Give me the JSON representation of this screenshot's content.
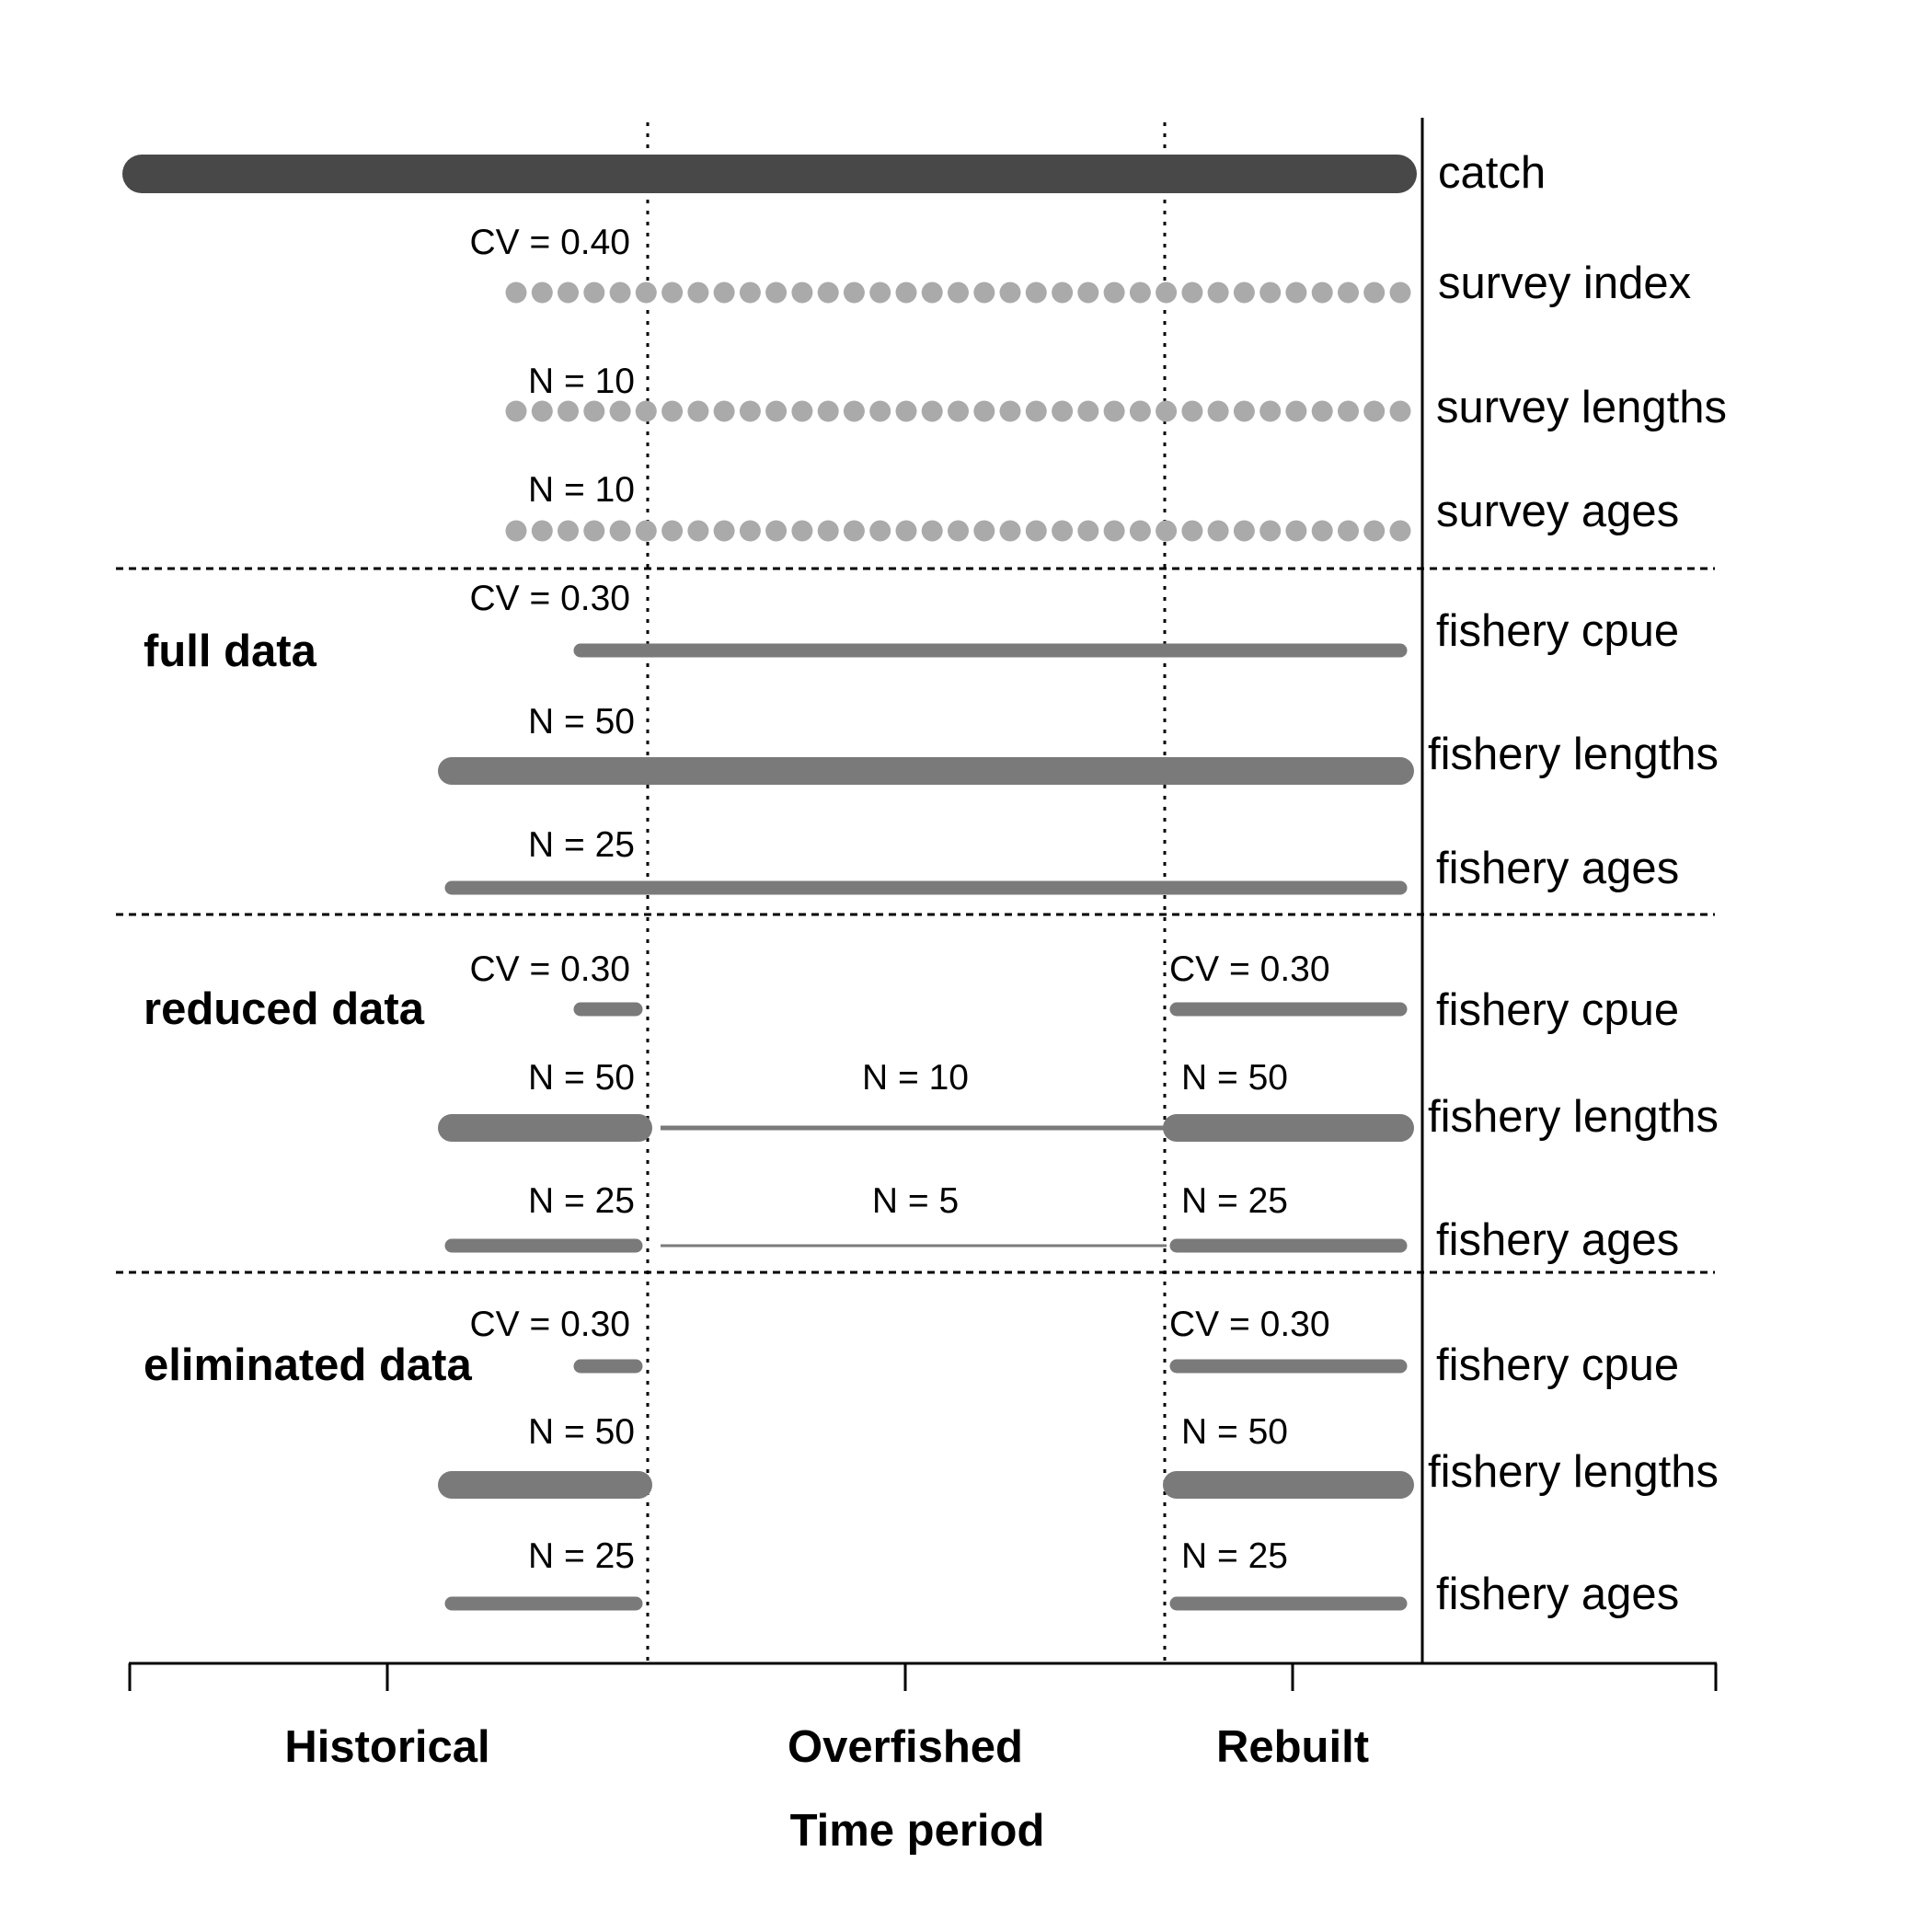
{
  "colors": {
    "catch": "#484848",
    "survey": "#aaaaaa",
    "fishery": "#7a7a7a",
    "axis": "#000000"
  },
  "xaxis": {
    "title": "Time period",
    "periods": [
      "Historical",
      "Overfished",
      "Rebuilt"
    ]
  },
  "top_rows": [
    {
      "name": "catch",
      "ann": ""
    },
    {
      "name": "survey index",
      "ann": "CV = 0.40"
    },
    {
      "name": "survey lengths",
      "ann": "N = 10"
    },
    {
      "name": "survey ages",
      "ann": "N = 10"
    }
  ],
  "groups": [
    {
      "label": "full data",
      "rows": [
        {
          "name": "fishery cpue",
          "ann_hist": "CV = 0.30",
          "ann_over": "",
          "ann_reb": ""
        },
        {
          "name": "fishery lengths",
          "ann_hist": "N = 50",
          "ann_over": "",
          "ann_reb": ""
        },
        {
          "name": "fishery ages",
          "ann_hist": "N = 25",
          "ann_over": "",
          "ann_reb": ""
        }
      ]
    },
    {
      "label": "reduced data",
      "rows": [
        {
          "name": "fishery cpue",
          "ann_hist": "CV = 0.30",
          "ann_over": "",
          "ann_reb": "CV = 0.30"
        },
        {
          "name": "fishery lengths",
          "ann_hist": "N = 50",
          "ann_over": "N = 10",
          "ann_reb": "N = 50"
        },
        {
          "name": "fishery ages",
          "ann_hist": "N = 25",
          "ann_over": "N = 5",
          "ann_reb": "N = 25"
        }
      ]
    },
    {
      "label": "eliminated data",
      "rows": [
        {
          "name": "fishery cpue",
          "ann_hist": "CV = 0.30",
          "ann_over": "",
          "ann_reb": "CV = 0.30"
        },
        {
          "name": "fishery lengths",
          "ann_hist": "N = 50",
          "ann_over": "",
          "ann_reb": "N = 50"
        },
        {
          "name": "fishery ages",
          "ann_hist": "N = 25",
          "ann_over": "",
          "ann_reb": "N = 25"
        }
      ]
    }
  ]
}
